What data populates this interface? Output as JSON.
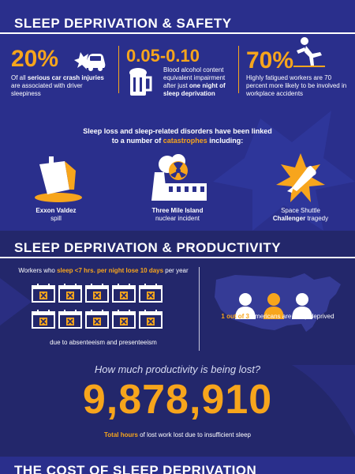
{
  "colors": {
    "accent": "#f7a51c",
    "bg_dark": "#23276b",
    "bg_mid": "#2a2f8c",
    "text": "#ffffff"
  },
  "safety": {
    "title": "SLEEP DEPRIVATION & SAFETY",
    "stat1": {
      "value": "20%",
      "text_a": "Of all ",
      "text_bold": "serious car crash injuries",
      "text_b": " are associated with driver sleepiness",
      "icon": "car-crash-icon"
    },
    "stat2": {
      "value": "0.05-0.10",
      "text_a": "Blood alcohol content equivalent impairment after just ",
      "text_bold": "one night of sleep deprivation",
      "icon": "beer-mug-icon"
    },
    "stat3": {
      "value": "70%",
      "text_a": "Highly fatigued workers are 70 percent more likely to be involved in workplace accidents",
      "icon": "falling-person-icon"
    },
    "intro_a": "Sleep loss and sleep-related disorders have been linked",
    "intro_b": "to a number of ",
    "intro_highlight": "catastrophes",
    "intro_c": " including:",
    "catastrophes": [
      {
        "bold": "Exxon Valdez",
        "rest": "spill",
        "icon": "oil-spill-ship-icon"
      },
      {
        "bold": "Three Mile Island",
        "rest": "nuclear incident",
        "icon": "nuclear-plant-icon"
      },
      {
        "pre": "Space Shuttle",
        "bold": "Challenger",
        "rest": " tragedy",
        "icon": "space-shuttle-icon"
      }
    ]
  },
  "productivity": {
    "title": "SLEEP DEPRIVATION & PRODUCTIVITY",
    "workers_a": "Workers who ",
    "workers_highlight": "sleep <7 hrs. per night lose 10 days",
    "workers_b": " per year",
    "absentee": "due to absenteeism and presenteeism",
    "calendar_count": 10,
    "americans_highlight": "1 out of 3",
    "americans_rest": " Americans are sleep deprived",
    "question": "How much productivity is being lost?",
    "hours": "9,878,910",
    "hours_caption_bold": "Total hours",
    "hours_caption_rest": " of lost work lost due to insufficient sleep"
  },
  "cost": {
    "title": "THE COST OF SLEEP DEPRIVATION"
  }
}
